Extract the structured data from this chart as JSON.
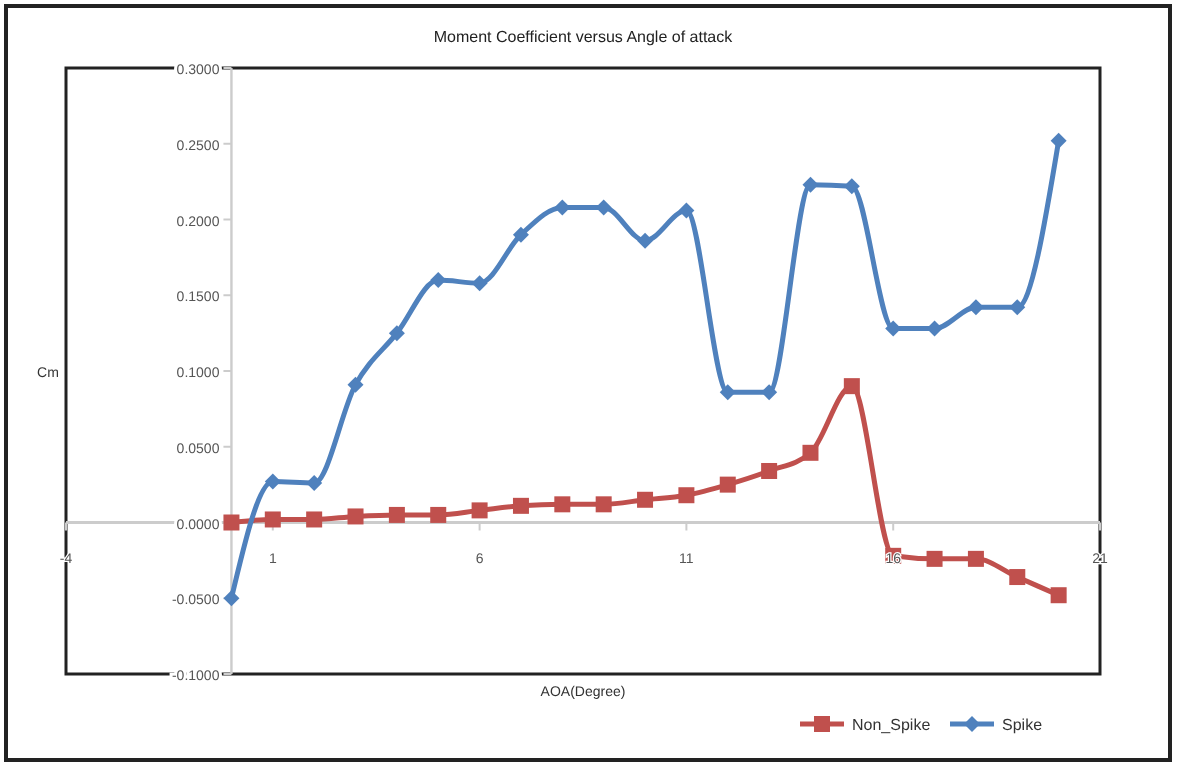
{
  "chart_data": {
    "type": "line",
    "title": "Moment Coefficient versus Angle of attack",
    "xlabel": "AOA(Degree)",
    "ylabel": "Cm",
    "x": [
      0,
      1,
      2,
      3,
      4,
      5,
      6,
      7,
      8,
      9,
      10,
      11,
      12,
      13,
      14,
      15,
      16,
      17,
      18,
      19,
      20
    ],
    "series": [
      {
        "name": "Non_Spike",
        "color": "#c0504d",
        "marker": "square",
        "values": [
          0.0,
          0.002,
          0.002,
          0.004,
          0.005,
          0.005,
          0.008,
          0.011,
          0.012,
          0.012,
          0.015,
          0.018,
          0.025,
          0.034,
          0.046,
          0.09,
          -0.022,
          -0.024,
          -0.024,
          -0.036,
          -0.048
        ]
      },
      {
        "name": "Spike",
        "color": "#4f81bd",
        "marker": "diamond",
        "values": [
          -0.05,
          0.027,
          0.026,
          0.091,
          0.125,
          0.16,
          0.158,
          0.19,
          0.208,
          0.208,
          0.186,
          0.206,
          0.086,
          0.086,
          0.223,
          0.222,
          0.128,
          0.128,
          0.142,
          0.142,
          0.252
        ]
      }
    ],
    "xlim": [
      -4,
      21
    ],
    "xticks": [
      -4,
      1,
      6,
      11,
      16,
      21
    ],
    "ylim": [
      -0.1,
      0.3
    ],
    "yticks": [
      {
        "value": -0.1,
        "label": "-0.1000"
      },
      {
        "value": -0.05,
        "label": "-0.0500"
      },
      {
        "value": 0,
        "label": "0.0000"
      },
      {
        "value": 0.05,
        "label": "0.0500"
      },
      {
        "value": 0.1,
        "label": "0.1000"
      },
      {
        "value": 0.15,
        "label": "0.1500"
      },
      {
        "value": 0.2,
        "label": "0.2000"
      },
      {
        "value": 0.25,
        "label": "0.2500"
      },
      {
        "value": 0.3,
        "label": "0.3000"
      }
    ],
    "legend": "bottom right"
  }
}
